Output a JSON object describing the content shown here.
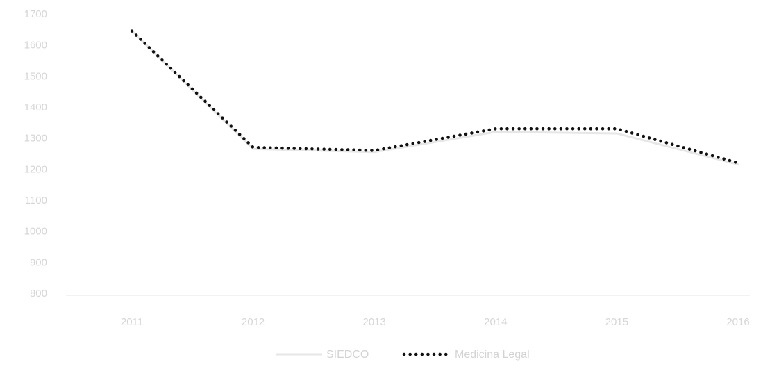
{
  "chart_data": {
    "type": "line",
    "title": "",
    "xlabel": "",
    "ylabel": "",
    "categories": [
      "2011",
      "2012",
      "2013",
      "2014",
      "2015",
      "2016"
    ],
    "ylim": [
      800,
      1700
    ],
    "yticks": [
      800,
      900,
      1000,
      1100,
      1200,
      1300,
      1400,
      1500,
      1600,
      1700
    ],
    "grid": false,
    "legend_position": "bottom",
    "series": [
      {
        "name": "SIEDCO",
        "values": [
          1645,
          1265,
          1255,
          1320,
          1315,
          1215
        ],
        "color": "#e6e6e6",
        "style": "solid"
      },
      {
        "name": "Medicina Legal",
        "values": [
          1645,
          1270,
          1260,
          1330,
          1330,
          1220
        ],
        "color": "#111111",
        "style": "dotted"
      }
    ]
  }
}
